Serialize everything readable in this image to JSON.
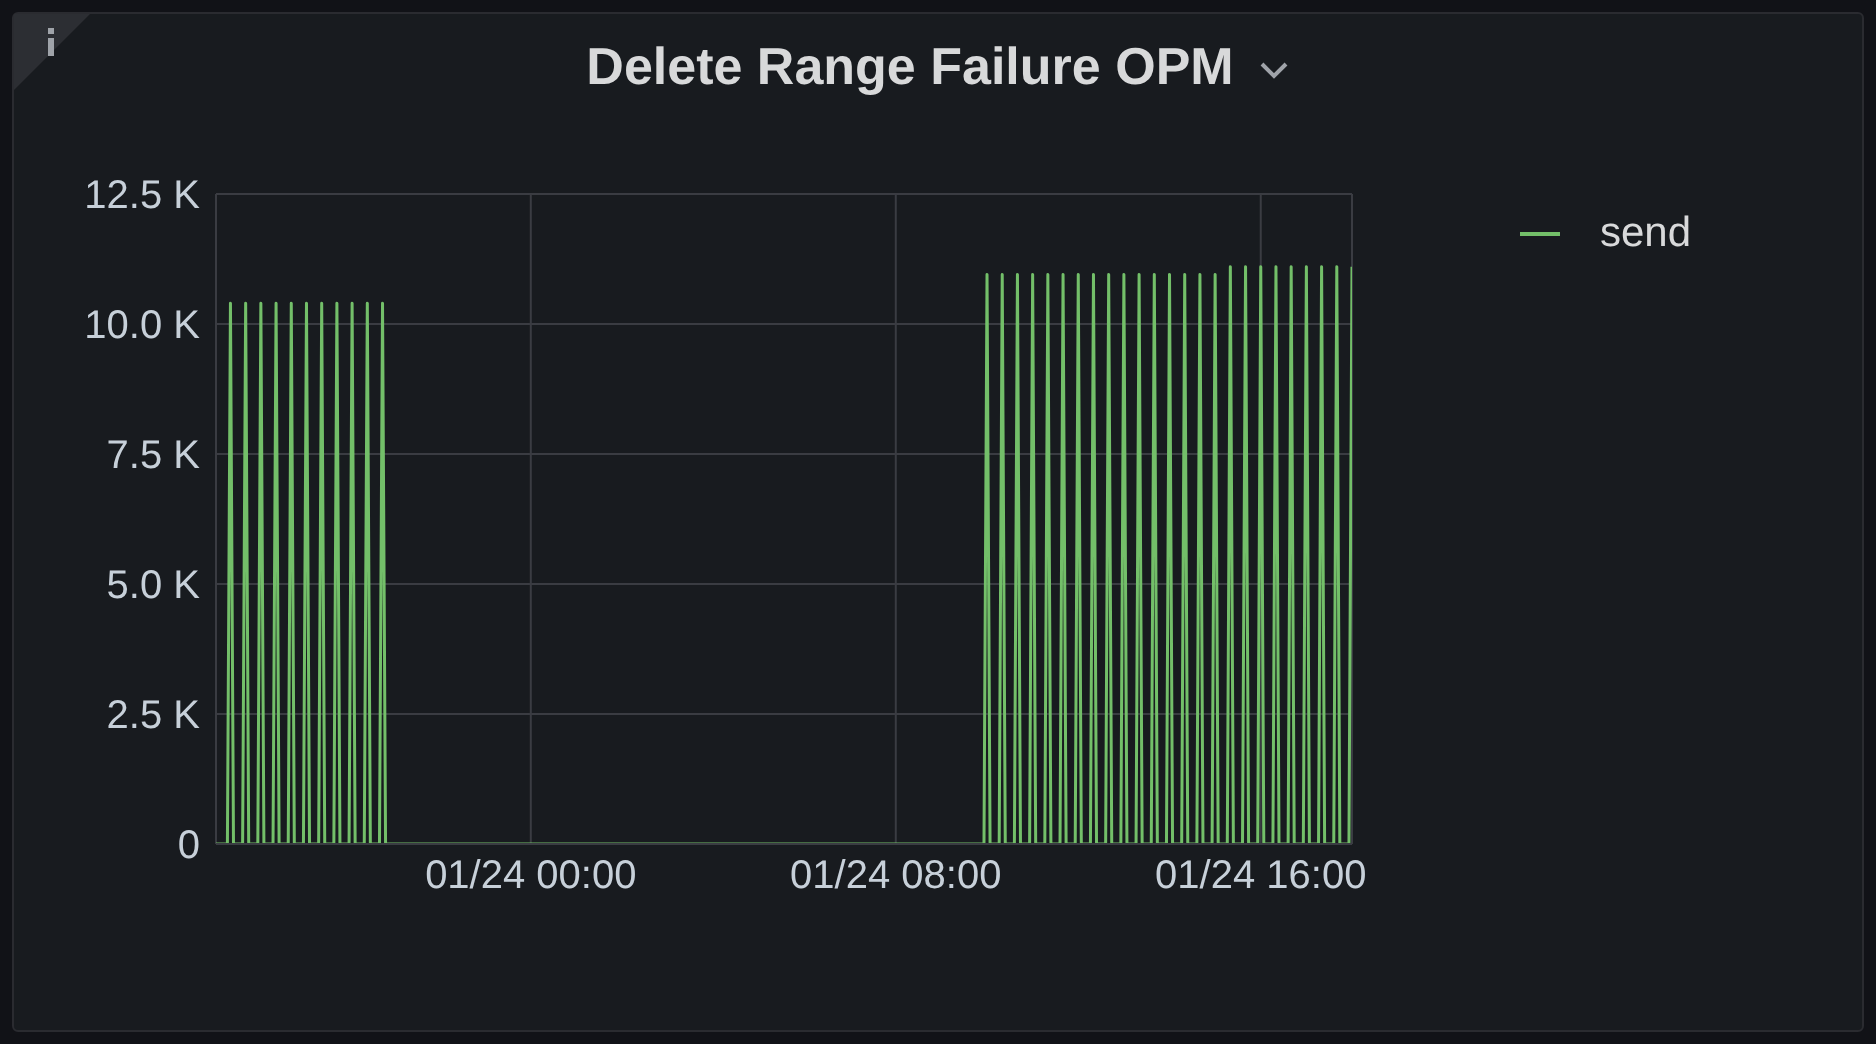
{
  "chart_data": {
    "type": "line",
    "title": "Delete Range Failure OPM",
    "x": [
      "--01-23T17:06",
      "--01-23T17:21",
      "--01-23T17:25",
      "--01-23T17:29",
      "--01-23T17:41",
      "--01-23T17:45",
      "--01-23T17:49",
      "--01-23T18:01",
      "--01-23T18:05",
      "--01-23T18:09",
      "--01-23T18:21",
      "--01-23T18:25",
      "--01-23T18:29",
      "--01-23T18:41",
      "--01-23T18:45",
      "--01-23T18:49",
      "--01-23T19:01",
      "--01-23T19:05",
      "--01-23T19:09",
      "--01-23T19:21",
      "--01-23T19:25",
      "--01-23T19:29",
      "--01-23T19:41",
      "--01-23T19:45",
      "--01-23T19:49",
      "--01-23T20:01",
      "--01-23T20:05",
      "--01-23T20:09",
      "--01-23T20:21",
      "--01-23T20:25",
      "--01-23T20:29",
      "--01-23T20:41",
      "--01-23T20:45",
      "--01-23T20:49",
      "--01-24T09:56",
      "--01-24T10:00",
      "--01-24T10:04",
      "--01-24T10:16",
      "--01-24T10:20",
      "--01-24T10:24",
      "--01-24T10:36",
      "--01-24T10:40",
      "--01-24T10:44",
      "--01-24T10:56",
      "--01-24T11:00",
      "--01-24T11:04",
      "--01-24T11:16",
      "--01-24T11:20",
      "--01-24T11:24",
      "--01-24T11:36",
      "--01-24T11:40",
      "--01-24T11:44",
      "--01-24T11:56",
      "--01-24T12:00",
      "--01-24T12:04",
      "--01-24T12:16",
      "--01-24T12:20",
      "--01-24T12:24",
      "--01-24T12:36",
      "--01-24T12:40",
      "--01-24T12:44",
      "--01-24T12:56",
      "--01-24T13:00",
      "--01-24T13:04",
      "--01-24T13:16",
      "--01-24T13:20",
      "--01-24T13:24",
      "--01-24T13:36",
      "--01-24T13:40",
      "--01-24T13:44",
      "--01-24T13:56",
      "--01-24T14:00",
      "--01-24T14:04",
      "--01-24T14:16",
      "--01-24T14:20",
      "--01-24T14:24",
      "--01-24T14:36",
      "--01-24T14:40",
      "--01-24T14:44",
      "--01-24T14:56",
      "--01-24T15:00",
      "--01-24T15:04",
      "--01-24T15:16",
      "--01-24T15:20",
      "--01-24T15:24",
      "--01-24T15:36",
      "--01-24T15:40",
      "--01-24T15:44",
      "--01-24T15:56",
      "--01-24T16:00",
      "--01-24T16:04",
      "--01-24T16:16",
      "--01-24T16:20",
      "--01-24T16:24",
      "--01-24T16:36",
      "--01-24T16:40",
      "--01-24T16:44",
      "--01-24T16:56",
      "--01-24T17:00",
      "--01-24T17:04",
      "--01-24T17:16",
      "--01-24T17:20",
      "--01-24T17:24",
      "--01-24T17:36",
      "--01-24T17:40",
      "--01-24T17:44",
      "--01-24T17:56",
      "--01-24T18:00"
    ],
    "series": [
      {
        "name": "send",
        "color": "#73bf69",
        "values": [
          0,
          0,
          10400,
          0,
          0,
          10400,
          0,
          0,
          10400,
          0,
          0,
          10400,
          0,
          0,
          10400,
          0,
          0,
          10400,
          0,
          0,
          10400,
          0,
          0,
          10400,
          0,
          0,
          10400,
          0,
          0,
          10400,
          0,
          0,
          10400,
          0,
          0,
          10950,
          0,
          0,
          10950,
          0,
          0,
          10950,
          0,
          0,
          10950,
          0,
          0,
          10950,
          0,
          0,
          10950,
          0,
          0,
          10950,
          0,
          0,
          10950,
          0,
          0,
          10950,
          0,
          0,
          10950,
          0,
          0,
          10950,
          0,
          0,
          10950,
          0,
          0,
          10950,
          0,
          0,
          10950,
          0,
          0,
          10950,
          0,
          0,
          10950,
          0,
          0,
          11100,
          0,
          0,
          11100,
          0,
          0,
          11100,
          0,
          0,
          11100,
          0,
          0,
          11100,
          0,
          0,
          11100,
          0,
          0,
          11100,
          0,
          0,
          11100,
          0,
          0,
          11100
        ]
      }
    ],
    "xlim": [
      "--01-23T17:06",
      "--01-24T18:00"
    ],
    "xticks": [
      {
        "value": "--01-24T00:00",
        "label": "01/24 00:00"
      },
      {
        "value": "--01-24T08:00",
        "label": "01/24 08:00"
      },
      {
        "value": "--01-24T16:00",
        "label": "01/24 16:00"
      }
    ],
    "ylim": [
      0,
      12500
    ],
    "yticks": [
      0,
      {
        "value": 2500,
        "label": "2.5 K"
      },
      {
        "value": 5000,
        "label": "5.0 K"
      },
      {
        "value": 7500,
        "label": "7.5 K"
      },
      {
        "value": 10000,
        "label": "10.0 K"
      },
      {
        "value": 12500,
        "label": "12.5 K"
      }
    ],
    "grid": true,
    "legend": "top right"
  }
}
